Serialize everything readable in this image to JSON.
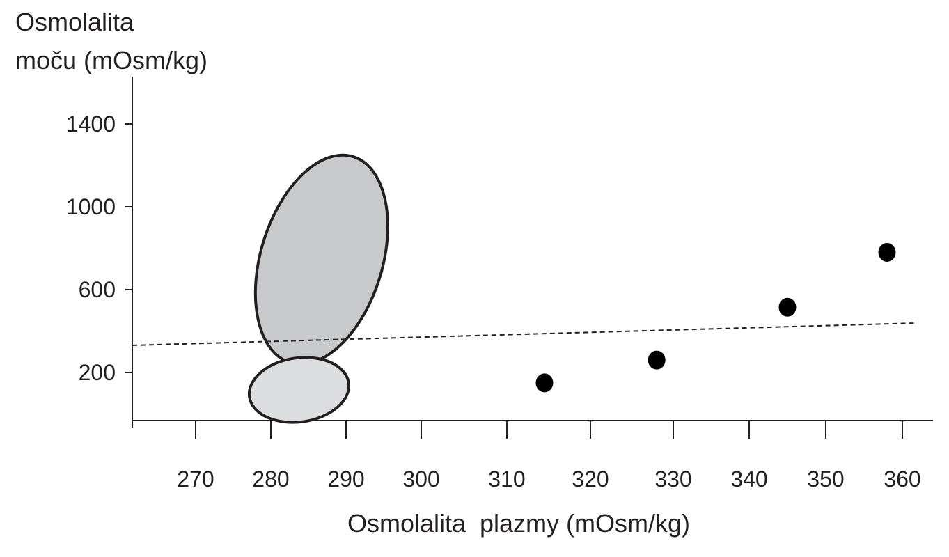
{
  "chart_data": {
    "type": "scatter",
    "title": "",
    "ylabel": [
      "Osmolalita",
      "moču (mOsm/kg)"
    ],
    "xlabel": "Osmolalita  plazmy (mOsm/kg)",
    "y_ticks": [
      "200",
      "600",
      "1000",
      "1400"
    ],
    "x_ticks": [
      "270",
      "280",
      "290",
      "300",
      "310",
      "320",
      "330",
      "340",
      "350",
      "360"
    ],
    "points": [
      {
        "x": 314.5,
        "y": 150
      },
      {
        "x": 328,
        "y": 260
      },
      {
        "x": 345,
        "y": 515
      },
      {
        "x": 358,
        "y": 780
      }
    ],
    "dashed_line": [
      {
        "x": 262,
        "y": 330
      },
      {
        "x": 363,
        "y": 440
      }
    ],
    "regions": [
      {
        "shape": "ellipse",
        "fill": "#c8c9cb",
        "x_range": [
          276.5,
          297
        ],
        "y_range": [
          220,
          1270
        ]
      },
      {
        "shape": "ellipse",
        "fill": "#dcdddf",
        "x_range": [
          277,
          290.5
        ],
        "y_range": 0
      }
    ],
    "grid": false,
    "colors": {
      "points": "#000000",
      "outline": "#231f20"
    }
  }
}
